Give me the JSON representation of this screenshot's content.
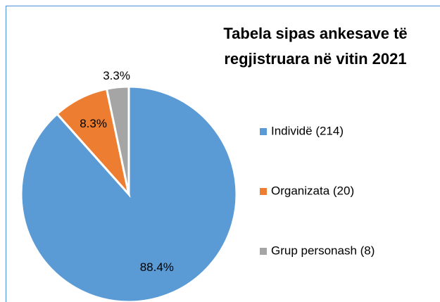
{
  "chart_data": {
    "type": "pie",
    "title": "Tabela sipas ankesave të regjistruara në vitin 2021",
    "categories": [
      "Individë (214)",
      "Organizata (20)",
      "Grup personash (8)"
    ],
    "values": [
      88.4,
      8.3,
      3.3
    ],
    "value_labels": [
      "88.4%",
      "8.3%",
      "3.3%"
    ],
    "colors": [
      "#5b9bd5",
      "#ed7d31",
      "#a5a5a5"
    ],
    "legend": "right"
  }
}
